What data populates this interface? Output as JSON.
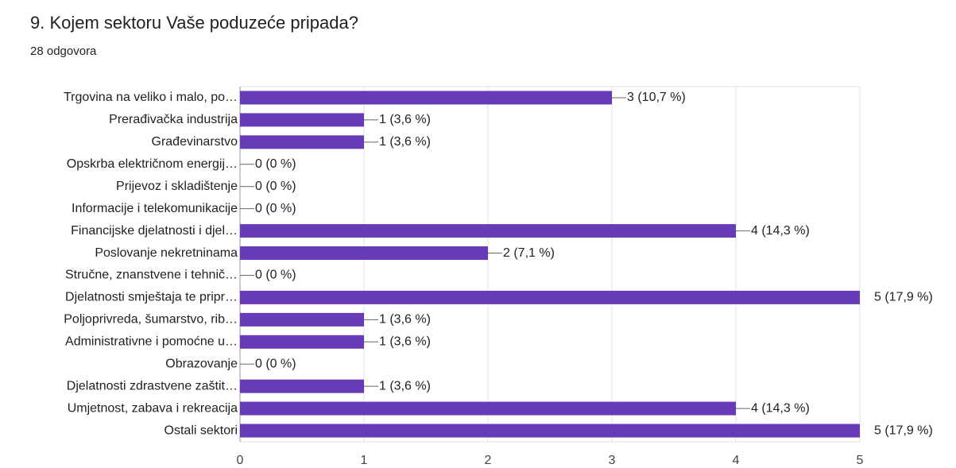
{
  "chart_data": {
    "type": "bar",
    "orientation": "horizontal",
    "title": "9. Kojem sektoru Vaše poduzeće pripada?",
    "subtitle": "28 odgovora",
    "categories": [
      "Trgovina na veliko i malo, po…",
      "Prerađivačka industrija",
      "Građevinarstvo",
      "Opskrba električnom energij…",
      "Prijevoz i skladištenje",
      "Informacije i telekomunikacije",
      "Financijske djelatnosti i djel…",
      "Poslovanje nekretninama",
      "Stručne, znanstvene i tehnič…",
      "Djelatnosti smještaja te pripr…",
      "Poljoprivreda, šumarstvo, rib…",
      "Administrativne i pomoćne u…",
      "Obrazovanje",
      "Djelatnosti zdrastvene zaštit…",
      "Umjetnost, zabava i rekreacija",
      "Ostali sektori"
    ],
    "values": [
      3,
      1,
      1,
      0,
      0,
      0,
      4,
      2,
      0,
      5,
      1,
      1,
      0,
      1,
      4,
      5
    ],
    "value_labels": [
      "3 (10,7 %)",
      "1 (3,6 %)",
      "1 (3,6 %)",
      "0 (0 %)",
      "0 (0 %)",
      "0 (0 %)",
      "4 (14,3 %)",
      "2 (7,1 %)",
      "0 (0 %)",
      "5 (17,9 %)",
      "1 (3,6 %)",
      "1 (3,6 %)",
      "0 (0 %)",
      "1 (3,6 %)",
      "4 (14,3 %)",
      "5 (17,9 %)"
    ],
    "color": "#673ab7",
    "xlim": [
      0,
      5
    ],
    "xticks": [
      0,
      1,
      2,
      3,
      4,
      5
    ],
    "grid": true
  }
}
